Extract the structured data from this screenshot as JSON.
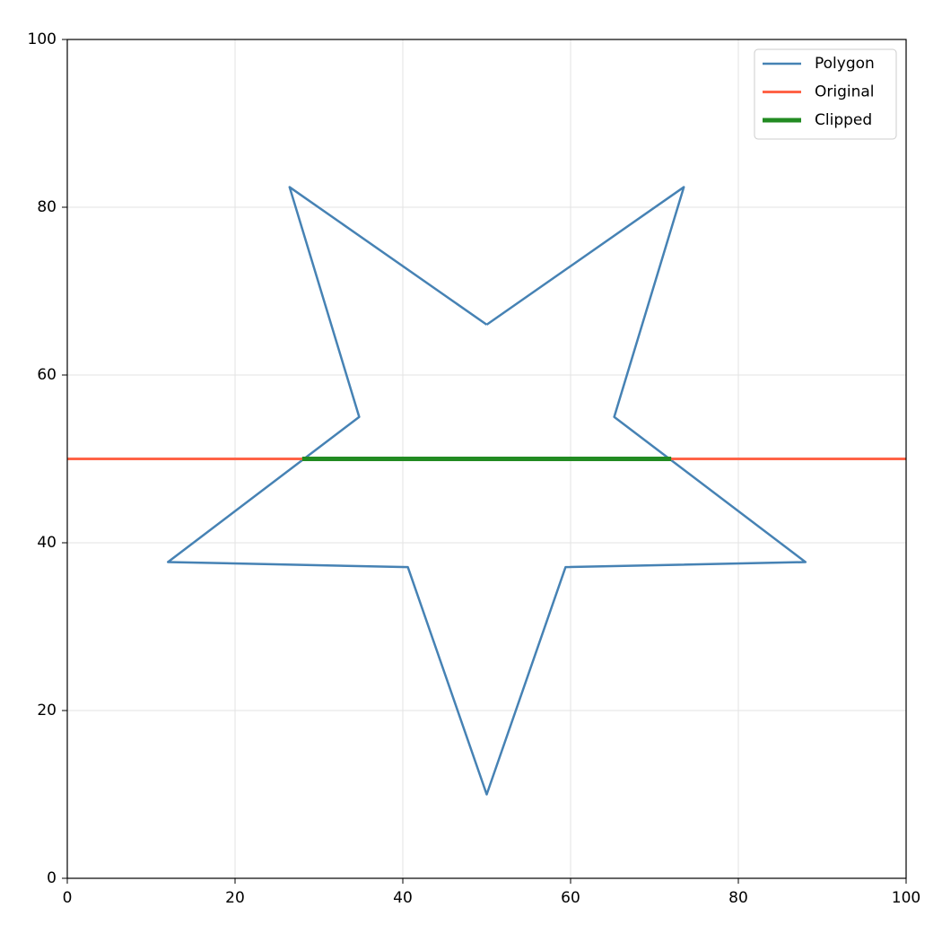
{
  "chart_data": {
    "type": "line",
    "series": [
      {
        "name": "Polygon",
        "color": "#4682b4",
        "width": 2.5,
        "x": [
          50,
          73.5,
          65.2,
          88,
          59.4,
          50,
          40.6,
          12,
          34.8,
          26.5,
          50
        ],
        "values": [
          66,
          82.4,
          55,
          37.7,
          37.1,
          10,
          37.1,
          37.7,
          55,
          82.4,
          66
        ]
      },
      {
        "name": "Original",
        "color": "#ff6347",
        "width": 3,
        "x": [
          0,
          100
        ],
        "values": [
          50,
          50
        ]
      },
      {
        "name": "Clipped",
        "color": "#228b22",
        "width": 5,
        "x": [
          28,
          72
        ],
        "values": [
          50,
          50
        ]
      }
    ],
    "xlim": [
      0,
      100
    ],
    "ylim": [
      0,
      100
    ],
    "xticks": [
      0,
      20,
      40,
      60,
      80,
      100
    ],
    "yticks": [
      0,
      20,
      40,
      60,
      80,
      100
    ],
    "grid": true,
    "legend": "upper-right"
  }
}
